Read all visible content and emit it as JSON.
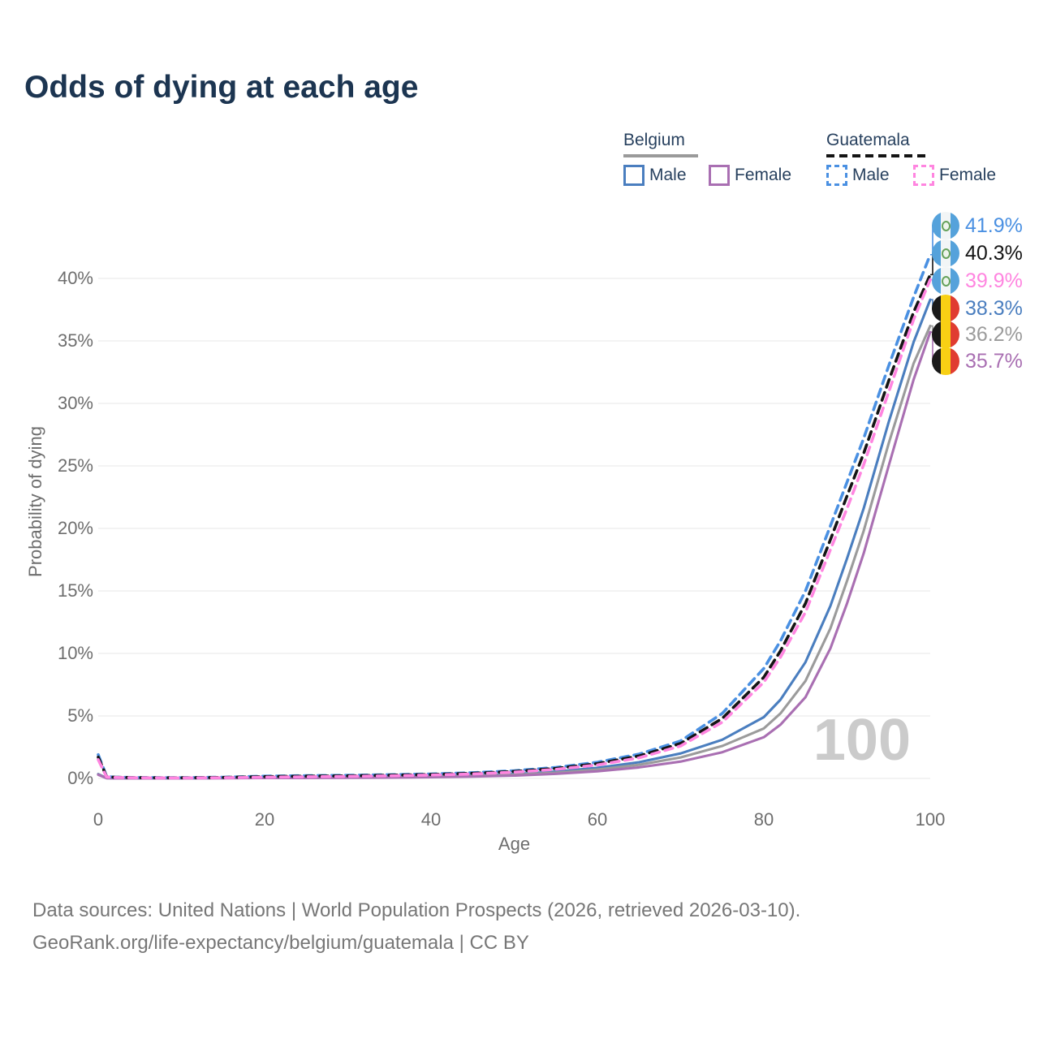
{
  "title": "Odds of dying at each age",
  "legend": {
    "groups": [
      {
        "name": "Belgium",
        "line_style": "solid",
        "underline_color": "#9a9a9a",
        "items": [
          {
            "label": "Male",
            "color": "#4a7ebf"
          },
          {
            "label": "Female",
            "color": "#a96fb2"
          }
        ]
      },
      {
        "name": "Guatemala",
        "line_style": "dashed",
        "underline_color": "#141414",
        "items": [
          {
            "label": "Male",
            "color": "#4a90e2"
          },
          {
            "label": "Female",
            "color": "#ff85e0"
          }
        ]
      }
    ]
  },
  "chart_data": {
    "type": "line",
    "title": "Odds of dying at each age",
    "xlabel": "Age",
    "ylabel": "Probability of dying",
    "xlim": [
      0,
      100
    ],
    "ylim": [
      0,
      43
    ],
    "grid": "horizontal",
    "legend_position": "top-right",
    "x_ticks": [
      {
        "value": 0,
        "label": "0"
      },
      {
        "value": 20,
        "label": "20"
      },
      {
        "value": 40,
        "label": "40"
      },
      {
        "value": 60,
        "label": "60"
      },
      {
        "value": 80,
        "label": "80"
      },
      {
        "value": 100,
        "label": "100"
      }
    ],
    "y_ticks": [
      {
        "value": 0,
        "label": "0%"
      },
      {
        "value": 5,
        "label": "5%"
      },
      {
        "value": 10,
        "label": "10%"
      },
      {
        "value": 15,
        "label": "15%"
      },
      {
        "value": 20,
        "label": "20%"
      },
      {
        "value": 25,
        "label": "25%"
      },
      {
        "value": 30,
        "label": "30%"
      },
      {
        "value": 35,
        "label": "35%"
      },
      {
        "value": 40,
        "label": "40%"
      }
    ],
    "x": [
      0,
      1,
      2,
      5,
      10,
      15,
      20,
      25,
      30,
      35,
      40,
      45,
      50,
      55,
      60,
      65,
      70,
      75,
      80,
      82,
      85,
      88,
      90,
      92,
      95,
      98,
      100
    ],
    "series": [
      {
        "name": "guatemala-male",
        "country": "Guatemala",
        "sex": "male",
        "color": "#4a90e2",
        "dashed": true,
        "flag": "gt",
        "end_value": 41.9,
        "end_label": "41.9%",
        "values": [
          1.9,
          0.16,
          0.1,
          0.07,
          0.06,
          0.1,
          0.18,
          0.22,
          0.25,
          0.3,
          0.36,
          0.46,
          0.62,
          0.88,
          1.3,
          1.95,
          3.0,
          5.2,
          8.8,
          11.0,
          15.0,
          20.2,
          23.7,
          27.2,
          33.0,
          38.5,
          41.9
        ]
      },
      {
        "name": "guatemala-both-sexes",
        "country": "Guatemala",
        "sex": "both",
        "color": "#141414",
        "dashed": true,
        "flag": "gt",
        "end_value": 40.3,
        "end_label": "40.3%",
        "values": [
          1.7,
          0.14,
          0.09,
          0.06,
          0.05,
          0.08,
          0.14,
          0.18,
          0.21,
          0.26,
          0.31,
          0.41,
          0.56,
          0.8,
          1.18,
          1.8,
          2.8,
          4.8,
          8.1,
          10.2,
          14.0,
          19.1,
          22.6,
          26.0,
          31.8,
          37.3,
          40.3
        ]
      },
      {
        "name": "guatemala-female",
        "country": "Guatemala",
        "sex": "female",
        "color": "#ff85e0",
        "dashed": true,
        "flag": "gt",
        "end_value": 39.9,
        "end_label": "39.9%",
        "values": [
          1.5,
          0.12,
          0.08,
          0.05,
          0.04,
          0.06,
          0.1,
          0.13,
          0.16,
          0.21,
          0.27,
          0.36,
          0.5,
          0.73,
          1.08,
          1.65,
          2.6,
          4.5,
          7.7,
          9.7,
          13.3,
          18.3,
          21.6,
          25.1,
          30.9,
          36.7,
          39.9
        ]
      },
      {
        "name": "belgium-male",
        "country": "Belgium",
        "sex": "male",
        "color": "#4a7ebf",
        "dashed": false,
        "flag": "be",
        "end_value": 38.3,
        "end_label": "38.3%",
        "values": [
          0.35,
          0.03,
          0.02,
          0.01,
          0.01,
          0.03,
          0.06,
          0.07,
          0.08,
          0.11,
          0.15,
          0.22,
          0.35,
          0.55,
          0.85,
          1.3,
          2.0,
          3.1,
          4.9,
          6.3,
          9.3,
          13.8,
          17.6,
          21.6,
          28.5,
          34.9,
          38.3
        ]
      },
      {
        "name": "belgium-both-sexes",
        "country": "Belgium",
        "sex": "both",
        "color": "#9b9b9b",
        "dashed": false,
        "flag": "be",
        "end_value": 36.2,
        "end_label": "36.2%",
        "values": [
          0.32,
          0.025,
          0.018,
          0.01,
          0.01,
          0.025,
          0.045,
          0.055,
          0.065,
          0.09,
          0.13,
          0.19,
          0.29,
          0.46,
          0.71,
          1.09,
          1.68,
          2.6,
          4.0,
          5.2,
          7.8,
          12.0,
          15.8,
          19.8,
          26.8,
          33.2,
          36.2
        ]
      },
      {
        "name": "belgium-female",
        "country": "Belgium",
        "sex": "female",
        "color": "#a96fb2",
        "dashed": false,
        "flag": "be",
        "end_value": 35.7,
        "end_label": "35.7%",
        "values": [
          0.3,
          0.02,
          0.015,
          0.01,
          0.01,
          0.02,
          0.03,
          0.04,
          0.05,
          0.07,
          0.1,
          0.15,
          0.23,
          0.37,
          0.57,
          0.88,
          1.35,
          2.1,
          3.3,
          4.3,
          6.5,
          10.4,
          14.0,
          18.0,
          25.0,
          31.9,
          35.7
        ]
      }
    ]
  },
  "watermark": "100",
  "footer": {
    "line1": "Data sources: United Nations | World Population Prospects (2026, retrieved 2026-03-10).",
    "line2": "GeoRank.org/life-expectancy/belgium/guatemala | CC BY"
  }
}
